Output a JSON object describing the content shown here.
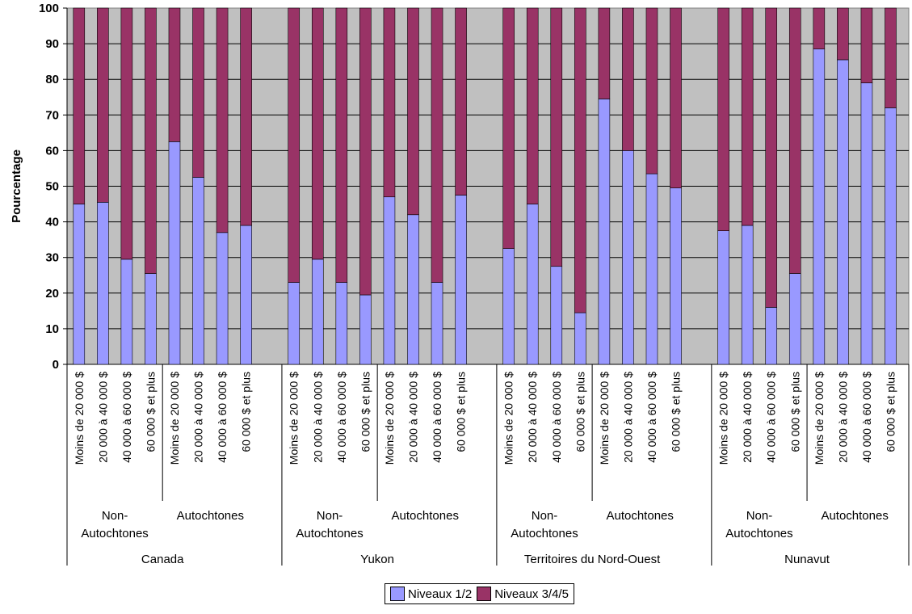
{
  "chart_data": {
    "type": "bar",
    "stacked": true,
    "ylabel": "Pourcentage",
    "ylim": [
      0,
      100
    ],
    "yticks": [
      0,
      10,
      20,
      30,
      40,
      50,
      60,
      70,
      80,
      90,
      100
    ],
    "grid": true,
    "legend_position": "bottom",
    "income_categories": [
      "Moins de 20 000 $",
      "20 000 à 40 000 $",
      "40 000 à 60 000 $",
      "60 000 $ et plus"
    ],
    "population_labels": [
      [
        "Non-",
        "Autochtones"
      ],
      [
        "Autochtones"
      ]
    ],
    "regions": [
      "Canada",
      "Yukon",
      "Territoires du Nord-Ouest",
      "Nunavut"
    ],
    "series": [
      {
        "name": "Niveaux 1/2",
        "color": "#9999ff",
        "values": [
          [
            [
              45,
              45.5,
              29.5,
              25.5
            ],
            [
              62.5,
              52.5,
              37,
              39
            ]
          ],
          [
            [
              23,
              29.5,
              23,
              19.5
            ],
            [
              47,
              42,
              23,
              47.5
            ]
          ],
          [
            [
              32.5,
              45,
              27.5,
              14.5
            ],
            [
              74.5,
              60,
              53.5,
              49.5
            ]
          ],
          [
            [
              37.5,
              39,
              16,
              25.5
            ],
            [
              88.5,
              85.5,
              79,
              72
            ]
          ]
        ]
      },
      {
        "name": "Niveaux 3/4/5",
        "color": "#993366",
        "values": [
          [
            [
              55,
              54.5,
              70.5,
              74.5
            ],
            [
              37.5,
              47.5,
              63,
              61
            ]
          ],
          [
            [
              77,
              70.5,
              77,
              80.5
            ],
            [
              53,
              58,
              77,
              52.5
            ]
          ],
          [
            [
              67.5,
              55,
              72.5,
              85.5
            ],
            [
              25.5,
              40,
              46.5,
              50.5
            ]
          ],
          [
            [
              62.5,
              61,
              84,
              74.5
            ],
            [
              11.5,
              14.5,
              21,
              28
            ]
          ]
        ]
      }
    ]
  }
}
